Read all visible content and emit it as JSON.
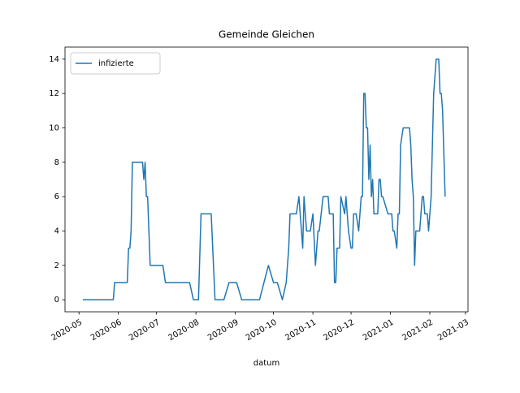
{
  "chart_data": {
    "type": "line",
    "title": "Gemeinde Gleichen",
    "x_label": "datum",
    "legend": "upper left",
    "grid": false,
    "xlim": [
      "2020-04-20",
      "2021-03-03"
    ],
    "ylim": [
      -0.7,
      14.7
    ],
    "yticks": [
      0,
      2,
      4,
      6,
      8,
      10,
      12,
      14
    ],
    "xticks": [
      {
        "value": "2020-05-01",
        "label": "2020-05"
      },
      {
        "value": "2020-06-01",
        "label": "2020-06"
      },
      {
        "value": "2020-07-01",
        "label": "2020-07"
      },
      {
        "value": "2020-08-01",
        "label": "2020-08"
      },
      {
        "value": "2020-09-01",
        "label": "2020-09"
      },
      {
        "value": "2020-10-01",
        "label": "2020-10"
      },
      {
        "value": "2020-11-01",
        "label": "2020-11"
      },
      {
        "value": "2020-12-01",
        "label": "2020-12"
      },
      {
        "value": "2021-01-01",
        "label": "2021-01"
      },
      {
        "value": "2021-02-01",
        "label": "2021-02"
      },
      {
        "value": "2021-03-01",
        "label": "2021-03"
      }
    ],
    "x": [
      "2020-05-04",
      "2020-05-28",
      "2020-05-29",
      "2020-06-08",
      "2020-06-09",
      "2020-06-10",
      "2020-06-11",
      "2020-06-12",
      "2020-06-20",
      "2020-06-21",
      "2020-06-22",
      "2020-06-23",
      "2020-06-24",
      "2020-06-26",
      "2020-07-06",
      "2020-07-08",
      "2020-07-27",
      "2020-07-30",
      "2020-08-03",
      "2020-08-05",
      "2020-08-13",
      "2020-08-16",
      "2020-08-23",
      "2020-08-27",
      "2020-09-02",
      "2020-09-06",
      "2020-09-20",
      "2020-09-27",
      "2020-10-01",
      "2020-10-04",
      "2020-10-08",
      "2020-10-11",
      "2020-10-13",
      "2020-10-14",
      "2020-10-19",
      "2020-10-21",
      "2020-10-24",
      "2020-10-25",
      "2020-10-27",
      "2020-10-30",
      "2020-11-01",
      "2020-11-03",
      "2020-11-05",
      "2020-11-06",
      "2020-11-09",
      "2020-11-13",
      "2020-11-14",
      "2020-11-17",
      "2020-11-18",
      "2020-11-19",
      "2020-11-20",
      "2020-11-22",
      "2020-11-23",
      "2020-11-26",
      "2020-11-27",
      "2020-11-29",
      "2020-12-01",
      "2020-12-02",
      "2020-12-03",
      "2020-12-05",
      "2020-12-07",
      "2020-12-09",
      "2020-12-10",
      "2020-12-11",
      "2020-12-12",
      "2020-12-13",
      "2020-12-14",
      "2020-12-15",
      "2020-12-16",
      "2020-12-17",
      "2020-12-18",
      "2020-12-19",
      "2020-12-22",
      "2020-12-23",
      "2020-12-24",
      "2020-12-25",
      "2020-12-26",
      "2020-12-30",
      "2021-01-02",
      "2021-01-03",
      "2021-01-04",
      "2021-01-06",
      "2021-01-07",
      "2021-01-08",
      "2021-01-09",
      "2021-01-11",
      "2021-01-16",
      "2021-01-17",
      "2021-01-18",
      "2021-01-19",
      "2021-01-20",
      "2021-01-21",
      "2021-01-24",
      "2021-01-26",
      "2021-01-27",
      "2021-01-28",
      "2021-01-30",
      "2021-01-31",
      "2021-02-02",
      "2021-02-04",
      "2021-02-06",
      "2021-02-08",
      "2021-02-09",
      "2021-02-10",
      "2021-02-11",
      "2021-02-13"
    ],
    "series": [
      {
        "name": "infizierte",
        "color": "#1f77b4",
        "values": [
          0,
          0,
          1,
          1,
          3,
          3,
          4,
          8,
          8,
          7,
          8,
          6,
          6,
          2,
          2,
          1,
          1,
          0,
          0,
          5,
          5,
          0,
          0,
          1,
          1,
          0,
          0,
          2,
          1,
          1,
          0,
          1,
          3,
          5,
          5,
          6,
          3,
          6,
          4,
          4,
          5,
          2,
          4,
          4,
          6,
          6,
          5,
          5,
          1,
          1,
          3,
          3,
          6,
          5,
          6,
          4,
          3,
          3,
          5,
          5,
          4,
          6,
          6,
          12,
          12,
          10,
          10,
          7,
          9,
          6,
          7,
          5,
          5,
          7,
          7,
          6,
          6,
          5,
          5,
          4,
          4,
          3,
          5,
          5,
          9,
          10,
          10,
          9,
          7,
          6,
          2,
          4,
          4,
          6,
          6,
          5,
          5,
          4,
          6,
          12,
          14,
          14,
          12,
          12,
          11,
          6
        ]
      }
    ]
  }
}
